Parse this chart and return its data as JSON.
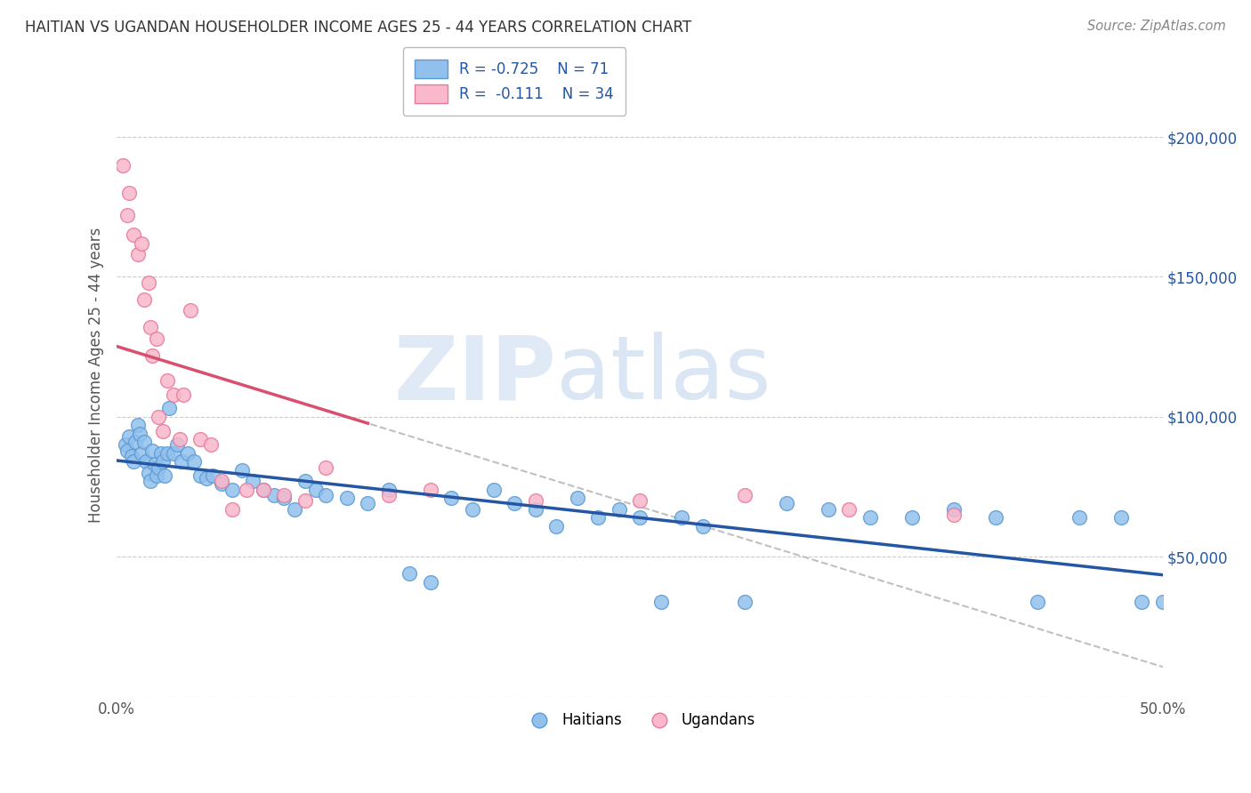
{
  "title": "HAITIAN VS UGANDAN HOUSEHOLDER INCOME AGES 25 - 44 YEARS CORRELATION CHART",
  "source": "Source: ZipAtlas.com",
  "ylabel": "Householder Income Ages 25 - 44 years",
  "xlim": [
    0.0,
    50.0
  ],
  "ylim": [
    0,
    230000
  ],
  "ytick_values": [
    0,
    50000,
    100000,
    150000,
    200000
  ],
  "ytick_labels": [
    "",
    "$50,000",
    "$100,000",
    "$150,000",
    "$200,000"
  ],
  "legend_R_haiti": "-0.725",
  "legend_N_haiti": "71",
  "legend_R_uganda": "-0.111",
  "legend_N_uganda": "34",
  "haiti_color": "#92C0EC",
  "haiti_edge": "#5B9BD5",
  "uganda_color": "#F9B8CB",
  "uganda_edge": "#E8789A",
  "haiti_line_color": "#2456A4",
  "uganda_line_color": "#D94F70",
  "dashed_line_color": "#C0C0C0",
  "watermark_zip": "ZIP",
  "watermark_atlas": "atlas",
  "background_color": "#FFFFFF",
  "haiti_x": [
    0.4,
    0.5,
    0.6,
    0.7,
    0.8,
    0.9,
    1.0,
    1.1,
    1.2,
    1.3,
    1.4,
    1.5,
    1.6,
    1.7,
    1.8,
    1.9,
    2.0,
    2.1,
    2.2,
    2.3,
    2.4,
    2.5,
    2.7,
    2.9,
    3.1,
    3.4,
    3.7,
    4.0,
    4.3,
    4.6,
    5.0,
    5.5,
    6.0,
    6.5,
    7.0,
    7.5,
    8.0,
    8.5,
    9.0,
    9.5,
    10.0,
    11.0,
    12.0,
    13.0,
    14.0,
    15.0,
    16.0,
    17.0,
    18.0,
    19.0,
    20.0,
    21.0,
    22.0,
    23.0,
    24.0,
    25.0,
    26.0,
    27.0,
    28.0,
    30.0,
    32.0,
    34.0,
    36.0,
    38.0,
    40.0,
    42.0,
    44.0,
    46.0,
    48.0,
    49.0,
    50.0
  ],
  "haiti_y": [
    90000,
    88000,
    93000,
    86000,
    84000,
    91000,
    97000,
    94000,
    87000,
    91000,
    84000,
    80000,
    77000,
    88000,
    83000,
    79000,
    82000,
    87000,
    84000,
    79000,
    87000,
    103000,
    87000,
    90000,
    84000,
    87000,
    84000,
    79000,
    78000,
    79000,
    76000,
    74000,
    81000,
    77000,
    74000,
    72000,
    71000,
    67000,
    77000,
    74000,
    72000,
    71000,
    69000,
    74000,
    44000,
    41000,
    71000,
    67000,
    74000,
    69000,
    67000,
    61000,
    71000,
    64000,
    67000,
    64000,
    34000,
    64000,
    61000,
    34000,
    69000,
    67000,
    64000,
    64000,
    67000,
    64000,
    34000,
    64000,
    64000,
    34000,
    34000
  ],
  "uganda_x": [
    0.3,
    0.5,
    0.6,
    0.8,
    1.0,
    1.2,
    1.3,
    1.5,
    1.6,
    1.7,
    1.9,
    2.0,
    2.2,
    2.4,
    2.7,
    3.0,
    3.2,
    3.5,
    4.0,
    4.5,
    5.0,
    5.5,
    6.2,
    7.0,
    8.0,
    9.0,
    10.0,
    13.0,
    15.0,
    20.0,
    25.0,
    30.0,
    35.0,
    40.0
  ],
  "uganda_y": [
    190000,
    172000,
    180000,
    165000,
    158000,
    162000,
    142000,
    148000,
    132000,
    122000,
    128000,
    100000,
    95000,
    113000,
    108000,
    92000,
    108000,
    138000,
    92000,
    90000,
    77000,
    67000,
    74000,
    74000,
    72000,
    70000,
    82000,
    72000,
    74000,
    70000,
    70000,
    72000,
    67000,
    65000
  ]
}
